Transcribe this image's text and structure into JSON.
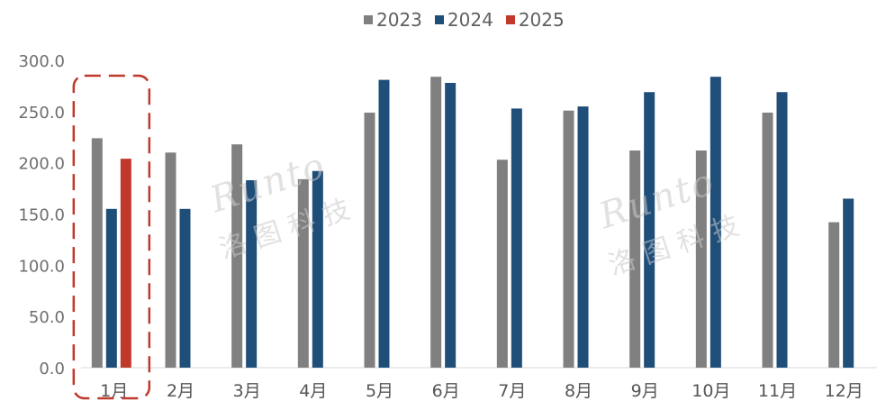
{
  "legend": [
    {
      "label": "2023",
      "color": "#808080"
    },
    {
      "label": "2024",
      "color": "#1f4e79"
    },
    {
      "label": "2025",
      "color": "#c0392b"
    }
  ],
  "watermark": {
    "text": "Runto",
    "sub": "洛图科技"
  },
  "chart_data": {
    "type": "bar",
    "categories": [
      "1月",
      "2月",
      "3月",
      "4月",
      "5月",
      "6月",
      "7月",
      "8月",
      "9月",
      "10月",
      "11月",
      "12月"
    ],
    "series": [
      {
        "name": "2023",
        "color": "#808080",
        "values": [
          224,
          210,
          218,
          184,
          249,
          284,
          203,
          251,
          212,
          212,
          249,
          142
        ]
      },
      {
        "name": "2024",
        "color": "#1f4e79",
        "values": [
          155,
          155,
          183,
          192,
          281,
          278,
          253,
          255,
          269,
          284,
          269,
          165
        ]
      },
      {
        "name": "2025",
        "color": "#c0392b",
        "values": [
          204,
          null,
          null,
          null,
          null,
          null,
          null,
          null,
          null,
          null,
          null,
          null
        ]
      }
    ],
    "yticks": [
      "0.0",
      "50.0",
      "100.0",
      "150.0",
      "200.0",
      "250.0",
      "300.0"
    ],
    "ylim": [
      0,
      300
    ],
    "highlight_category": "1月",
    "grid": false,
    "legend_position": "top"
  }
}
